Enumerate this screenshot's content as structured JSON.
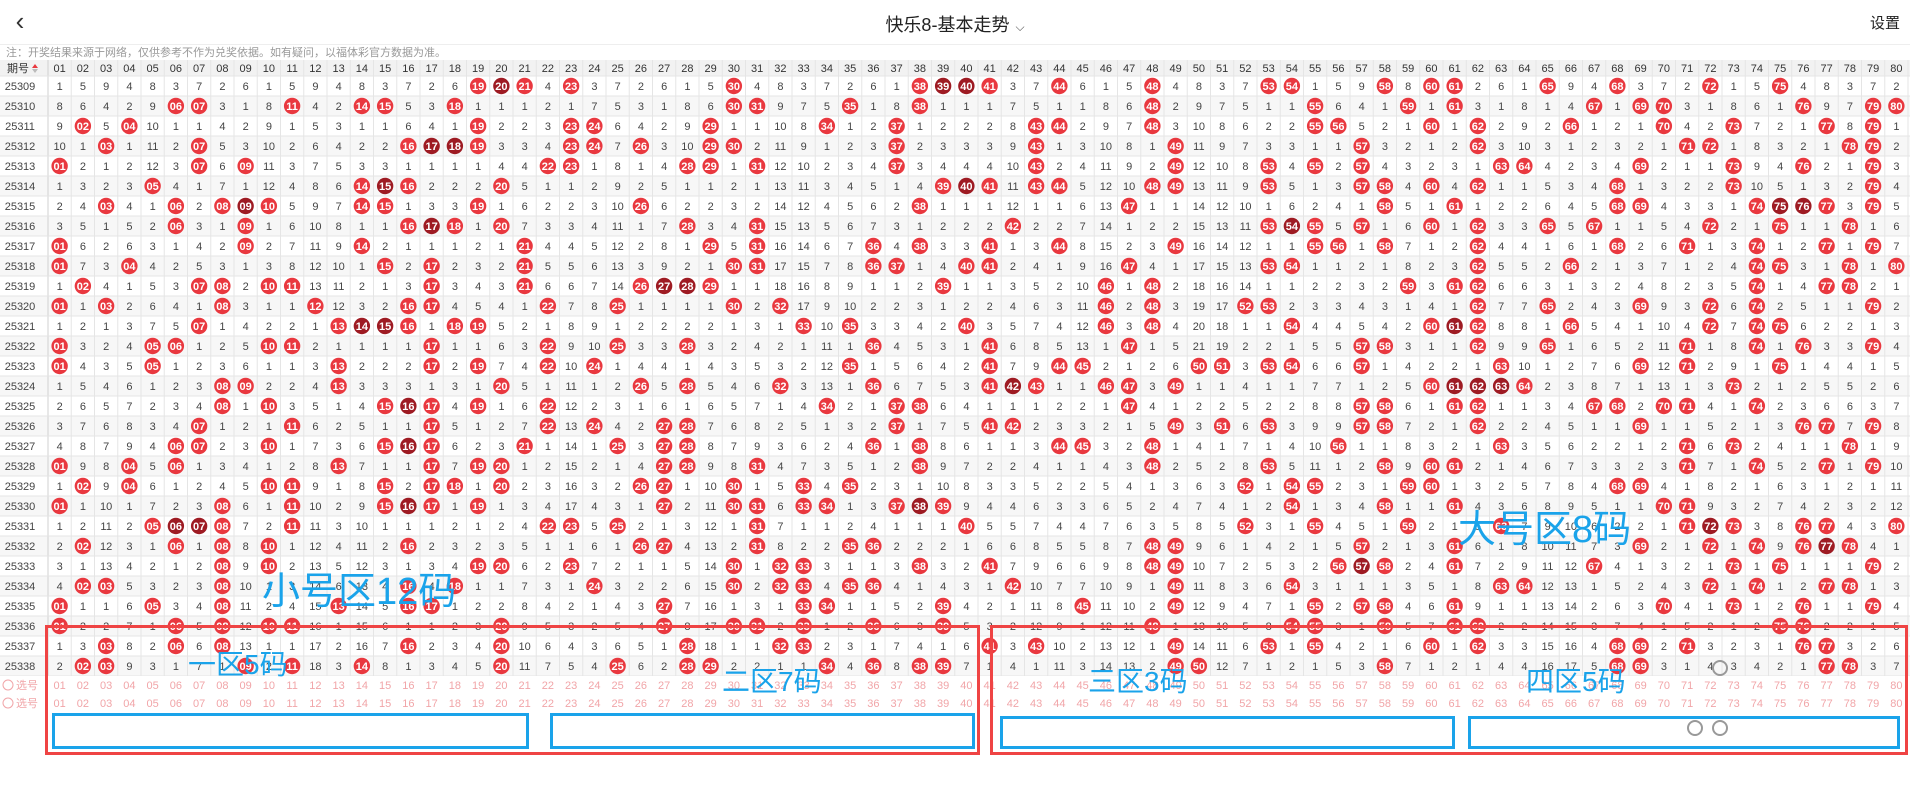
{
  "header": {
    "title": "快乐8-基本走势",
    "settings_label": "设置",
    "back_icon": "chevron-left-icon",
    "title_dropdown_icon": "chevron-down-icon"
  },
  "note": "注：开奖结果来源于网络，仅供参考不作为兑奖依据。如有疑问，以福体彩官方数据为准。",
  "table": {
    "issue_header": "期号",
    "sort_icon": "sort-icon",
    "numbers": [
      "01",
      "02",
      "03",
      "04",
      "05",
      "06",
      "07",
      "08",
      "09",
      "10",
      "11",
      "12",
      "13",
      "14",
      "15",
      "16",
      "17",
      "18",
      "19",
      "20",
      "21",
      "22",
      "23",
      "24",
      "25",
      "26",
      "27",
      "28",
      "29",
      "30",
      "31",
      "32",
      "33",
      "34",
      "35",
      "36",
      "37",
      "38",
      "39",
      "40",
      "41",
      "42",
      "43",
      "44",
      "45",
      "46",
      "47",
      "48",
      "49",
      "50",
      "51",
      "52",
      "53",
      "54",
      "55",
      "56",
      "57",
      "58",
      "59",
      "60",
      "61",
      "62",
      "63",
      "64",
      "65",
      "66",
      "67",
      "68",
      "69",
      "70",
      "71",
      "72",
      "73",
      "74",
      "75",
      "76",
      "77",
      "78",
      "79",
      "80"
    ],
    "rows": [
      {
        "issue": "25309",
        "drawn": [
          19,
          20,
          21,
          23,
          30,
          38,
          39,
          40,
          41,
          44,
          48,
          53,
          54,
          58,
          60,
          61,
          65,
          68,
          72,
          75
        ]
      },
      {
        "issue": "25310",
        "drawn": [
          6,
          7,
          11,
          14,
          15,
          18,
          30,
          31,
          35,
          38,
          48,
          55,
          59,
          61,
          67,
          69,
          70,
          76,
          79,
          80
        ]
      },
      {
        "issue": "25311",
        "drawn": [
          2,
          4,
          19,
          23,
          24,
          29,
          34,
          37,
          43,
          44,
          48,
          55,
          56,
          60,
          62,
          66,
          70,
          73,
          77,
          79
        ]
      },
      {
        "issue": "25312",
        "drawn": [
          3,
          7,
          16,
          17,
          18,
          19,
          23,
          24,
          26,
          29,
          30,
          37,
          43,
          49,
          57,
          62,
          71,
          72,
          78,
          79
        ]
      },
      {
        "issue": "25313",
        "drawn": [
          1,
          7,
          9,
          22,
          23,
          28,
          29,
          31,
          37,
          43,
          49,
          53,
          55,
          57,
          63,
          64,
          69,
          73,
          76,
          79
        ]
      },
      {
        "issue": "25314",
        "drawn": [
          5,
          14,
          15,
          16,
          20,
          39,
          40,
          41,
          43,
          44,
          48,
          49,
          53,
          57,
          58,
          60,
          62,
          68,
          73,
          79
        ]
      },
      {
        "issue": "25315",
        "drawn": [
          3,
          6,
          8,
          9,
          10,
          14,
          15,
          19,
          26,
          38,
          47,
          58,
          61,
          68,
          69,
          74,
          75,
          76,
          77,
          79
        ]
      },
      {
        "issue": "25316",
        "drawn": [
          6,
          9,
          16,
          17,
          18,
          20,
          28,
          31,
          42,
          53,
          54,
          55,
          57,
          60,
          62,
          65,
          67,
          72,
          75,
          78
        ]
      },
      {
        "issue": "25317",
        "drawn": [
          1,
          9,
          14,
          21,
          29,
          31,
          36,
          38,
          41,
          44,
          49,
          55,
          56,
          58,
          62,
          68,
          71,
          74,
          77,
          79
        ]
      },
      {
        "issue": "25318",
        "drawn": [
          1,
          4,
          15,
          17,
          21,
          30,
          31,
          36,
          37,
          40,
          41,
          47,
          53,
          54,
          62,
          66,
          74,
          75,
          78,
          80
        ]
      },
      {
        "issue": "25319",
        "drawn": [
          2,
          7,
          8,
          10,
          11,
          17,
          21,
          26,
          27,
          28,
          29,
          39,
          46,
          48,
          59,
          61,
          62,
          74,
          77,
          78
        ]
      },
      {
        "issue": "25320",
        "drawn": [
          1,
          3,
          8,
          12,
          16,
          17,
          22,
          25,
          30,
          32,
          46,
          48,
          52,
          53,
          62,
          65,
          69,
          72,
          74,
          79
        ]
      },
      {
        "issue": "25321",
        "drawn": [
          7,
          13,
          14,
          15,
          16,
          18,
          19,
          33,
          35,
          40,
          46,
          48,
          54,
          60,
          61,
          62,
          66,
          72,
          74,
          75
        ]
      },
      {
        "issue": "25322",
        "drawn": [
          1,
          5,
          6,
          10,
          11,
          17,
          22,
          25,
          28,
          36,
          41,
          47,
          57,
          58,
          62,
          65,
          71,
          74,
          76,
          79
        ]
      },
      {
        "issue": "25323",
        "drawn": [
          1,
          5,
          13,
          17,
          19,
          22,
          24,
          35,
          41,
          44,
          45,
          50,
          51,
          53,
          54,
          57,
          63,
          69,
          71,
          75
        ]
      },
      {
        "issue": "25324",
        "drawn": [
          8,
          9,
          13,
          20,
          26,
          28,
          32,
          36,
          41,
          42,
          43,
          46,
          47,
          49,
          60,
          61,
          62,
          63,
          64,
          73
        ]
      },
      {
        "issue": "25325",
        "drawn": [
          8,
          10,
          15,
          16,
          17,
          19,
          22,
          34,
          37,
          38,
          47,
          57,
          58,
          61,
          62,
          67,
          68,
          70,
          71,
          74
        ]
      },
      {
        "issue": "25326",
        "drawn": [
          7,
          11,
          17,
          22,
          24,
          27,
          28,
          37,
          41,
          42,
          49,
          51,
          53,
          57,
          58,
          62,
          69,
          76,
          77,
          79
        ]
      },
      {
        "issue": "25327",
        "drawn": [
          6,
          7,
          10,
          15,
          16,
          17,
          21,
          25,
          27,
          28,
          36,
          38,
          44,
          45,
          48,
          56,
          63,
          71,
          73,
          78
        ]
      },
      {
        "issue": "25328",
        "drawn": [
          1,
          4,
          6,
          13,
          17,
          19,
          20,
          27,
          28,
          31,
          38,
          48,
          53,
          58,
          60,
          61,
          71,
          74,
          77,
          79
        ]
      },
      {
        "issue": "25329",
        "drawn": [
          2,
          4,
          10,
          11,
          15,
          17,
          18,
          20,
          26,
          27,
          30,
          33,
          35,
          52,
          54,
          55,
          59,
          60,
          68,
          69
        ]
      },
      {
        "issue": "25330",
        "drawn": [
          1,
          8,
          11,
          15,
          16,
          17,
          19,
          27,
          30,
          31,
          33,
          34,
          37,
          38,
          39,
          54,
          58,
          61,
          70,
          71
        ]
      },
      {
        "issue": "25331",
        "drawn": [
          5,
          6,
          7,
          8,
          11,
          22,
          23,
          25,
          31,
          40,
          52,
          55,
          59,
          63,
          71,
          72,
          73,
          76,
          77,
          80
        ]
      },
      {
        "issue": "25332",
        "drawn": [
          2,
          6,
          8,
          10,
          16,
          26,
          27,
          31,
          35,
          36,
          48,
          49,
          57,
          61,
          69,
          72,
          74,
          76,
          77,
          78
        ]
      },
      {
        "issue": "25333",
        "drawn": [
          8,
          10,
          19,
          20,
          23,
          30,
          32,
          33,
          38,
          41,
          48,
          49,
          56,
          57,
          58,
          61,
          67,
          73,
          75,
          79
        ]
      },
      {
        "issue": "25334",
        "drawn": [
          2,
          3,
          8,
          16,
          18,
          24,
          30,
          32,
          33,
          35,
          36,
          42,
          49,
          54,
          63,
          64,
          72,
          74,
          77,
          78
        ]
      },
      {
        "issue": "25335",
        "drawn": [
          1,
          5,
          8,
          13,
          16,
          17,
          27,
          33,
          34,
          39,
          45,
          49,
          55,
          57,
          58,
          61,
          70,
          73,
          76,
          79
        ]
      },
      {
        "issue": "25336",
        "drawn": [
          1,
          6,
          8,
          10,
          11,
          20,
          27,
          30,
          31,
          33,
          36,
          39,
          48,
          54,
          55,
          58,
          61,
          62,
          75,
          76
        ]
      },
      {
        "issue": "25337",
        "drawn": [
          3,
          6,
          8,
          16,
          20,
          28,
          32,
          33,
          41,
          43,
          49,
          53,
          55,
          60,
          62,
          68,
          69,
          71,
          76,
          77
        ]
      },
      {
        "issue": "25338",
        "drawn": [
          2,
          3,
          9,
          11,
          14,
          20,
          25,
          28,
          29,
          34,
          36,
          38,
          39,
          49,
          50,
          58,
          68,
          69,
          77,
          78
        ]
      }
    ],
    "footer_label": "选号"
  },
  "annotations": {
    "small_zone": "小号区12码",
    "big_zone": "大号区8码",
    "zone1": "一区5码",
    "zone2": "二区7码",
    "zone3": "三区3码",
    "zone4": "四区5码"
  },
  "colors": {
    "ball": "#e9383f",
    "ball_dark": "#9e1b23",
    "grid_line": "#e5e5e5",
    "annotation_blue": "#1aa3ea",
    "annotation_red": "#ef4444"
  }
}
